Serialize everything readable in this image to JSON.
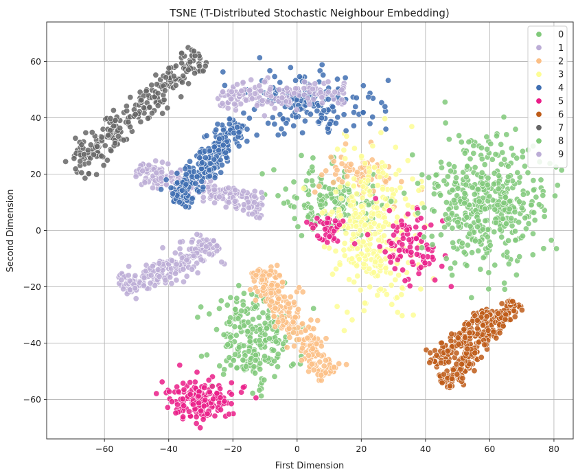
{
  "chart_data": {
    "type": "scatter",
    "title": "TSNE (T-Distributed Stochastic Neighbour Embedding)",
    "xlabel": "First Dimension",
    "ylabel": "Second Dimension",
    "xlim": [
      -78,
      86
    ],
    "ylim": [
      -74,
      74
    ],
    "xticks": [
      -60,
      -40,
      -20,
      0,
      20,
      40,
      60,
      80
    ],
    "yticks": [
      -60,
      -40,
      -20,
      0,
      20,
      40,
      60
    ],
    "grid": true,
    "legend_position": "top-right",
    "legend_labels": [
      "0",
      "1",
      "2",
      "3",
      "4",
      "5",
      "6",
      "7",
      "8",
      "9"
    ],
    "colors": [
      "#80c97a",
      "#bcadd6",
      "#fbbf86",
      "#fdfd95",
      "#406fb2",
      "#ea1d88",
      "#be5c19",
      "#666666",
      "#80c97a",
      "#bcadd6"
    ],
    "clusters": [
      {
        "label": "0",
        "shape": "blob",
        "center": [
          -14,
          -38
        ],
        "spread": [
          6.5,
          8
        ],
        "count": 230
      },
      {
        "label": "0",
        "shape": "blob",
        "center": [
          10,
          10
        ],
        "spread": [
          8,
          6
        ],
        "count": 150
      },
      {
        "label": "1",
        "shape": "band",
        "from": [
          -50,
          22
        ],
        "to": [
          -10,
          8
        ],
        "width": 4,
        "count": 260
      },
      {
        "label": "1",
        "shape": "band",
        "from": [
          -55,
          -20
        ],
        "to": [
          -25,
          -5
        ],
        "width": 5,
        "count": 220
      },
      {
        "label": "2",
        "shape": "band",
        "from": [
          -12,
          -14
        ],
        "to": [
          10,
          -52
        ],
        "width": 5,
        "count": 260
      },
      {
        "label": "2",
        "shape": "blob",
        "center": [
          20,
          20
        ],
        "spread": [
          6,
          4
        ],
        "count": 70
      },
      {
        "label": "3",
        "shape": "blob",
        "center": [
          24,
          0
        ],
        "spread": [
          7,
          14
        ],
        "count": 320
      },
      {
        "label": "4",
        "shape": "band",
        "from": [
          -38,
          10
        ],
        "to": [
          -18,
          38
        ],
        "width": 5,
        "count": 260
      },
      {
        "label": "4",
        "shape": "blob",
        "center": [
          4,
          45
        ],
        "spread": [
          10,
          5
        ],
        "count": 170
      },
      {
        "label": "5",
        "shape": "blob",
        "center": [
          -30,
          -60
        ],
        "spread": [
          5.5,
          3.5
        ],
        "count": 160
      },
      {
        "label": "5",
        "shape": "blob",
        "center": [
          35,
          -6
        ],
        "spread": [
          5,
          7
        ],
        "count": 90
      },
      {
        "label": "5",
        "shape": "blob",
        "center": [
          10,
          0
        ],
        "spread": [
          3,
          3
        ],
        "count": 40
      },
      {
        "label": "6",
        "shape": "band",
        "from": [
          46,
          -55
        ],
        "to": [
          68,
          -25
        ],
        "width": 3.5,
        "count": 220
      },
      {
        "label": "6",
        "shape": "band",
        "from": [
          42,
          -48
        ],
        "to": [
          60,
          -28
        ],
        "width": 3,
        "count": 120
      },
      {
        "label": "7",
        "shape": "band",
        "from": [
          -70,
          22
        ],
        "to": [
          -30,
          62
        ],
        "width": 5,
        "count": 260
      },
      {
        "label": "8",
        "shape": "blob",
        "center": [
          60,
          10
        ],
        "spread": [
          9,
          11
        ],
        "count": 420
      },
      {
        "label": "9",
        "shape": "band",
        "from": [
          -25,
          48
        ],
        "to": [
          15,
          48
        ],
        "width": 5,
        "count": 150
      }
    ]
  }
}
